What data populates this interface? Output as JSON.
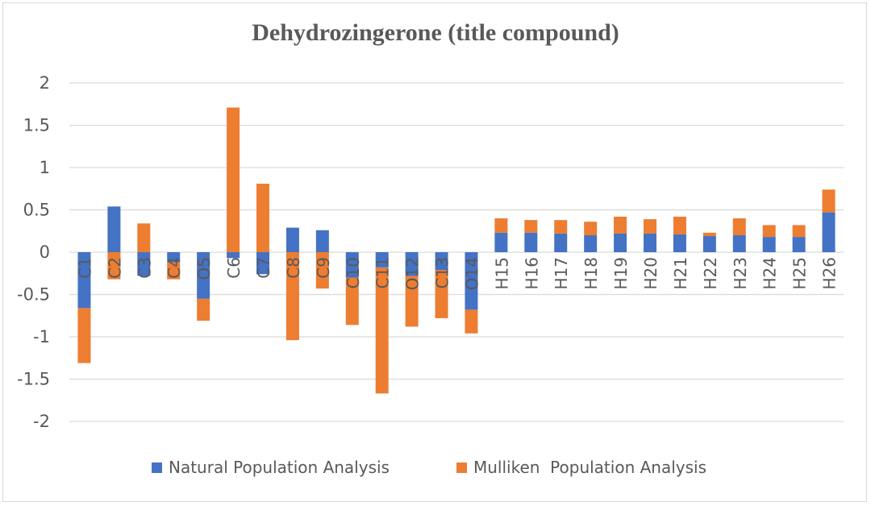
{
  "chart_data": {
    "type": "bar",
    "stacked": true,
    "title": "Dehydrozingerone (title compound)",
    "xlabel": "",
    "ylabel": "",
    "ylim": [
      -2,
      2
    ],
    "y_ticks": [
      "2",
      "1.5",
      "1",
      "0.5",
      "0",
      "-0.5",
      "-1",
      "-1.5",
      "-2"
    ],
    "y_tick_values": [
      2,
      1.5,
      1,
      0.5,
      0,
      -0.5,
      -1,
      -1.5,
      -2
    ],
    "grid": true,
    "legend_position": "bottom",
    "categories": [
      "C1",
      "C2",
      "C3",
      "C4",
      "O5",
      "C6",
      "C7",
      "C8",
      "C9",
      "C10",
      "C11",
      "O12",
      "C13",
      "O14",
      "H15",
      "H16",
      "H17",
      "H18",
      "H19",
      "H20",
      "H21",
      "H22",
      "H23",
      "H24",
      "H25",
      "H26"
    ],
    "series": [
      {
        "name": "Natural Population Analysis",
        "color": "#4472c4",
        "values": [
          -0.66,
          0.54,
          -0.28,
          -0.12,
          -0.55,
          -0.07,
          -0.26,
          0.29,
          0.26,
          -0.3,
          -0.18,
          -0.28,
          -0.21,
          -0.68,
          0.23,
          0.23,
          0.22,
          0.2,
          0.22,
          0.22,
          0.21,
          0.19,
          0.2,
          0.18,
          0.18,
          0.47
        ]
      },
      {
        "name": "Mulliken  Population Analysis",
        "color": "#ed7d31",
        "values": [
          -0.65,
          -0.32,
          0.34,
          -0.2,
          -0.26,
          1.71,
          0.81,
          -1.04,
          -0.43,
          -0.56,
          -1.49,
          -0.6,
          -0.57,
          -0.28,
          0.17,
          0.15,
          0.16,
          0.16,
          0.2,
          0.17,
          0.21,
          0.04,
          0.2,
          0.14,
          0.14,
          0.27
        ]
      }
    ]
  }
}
